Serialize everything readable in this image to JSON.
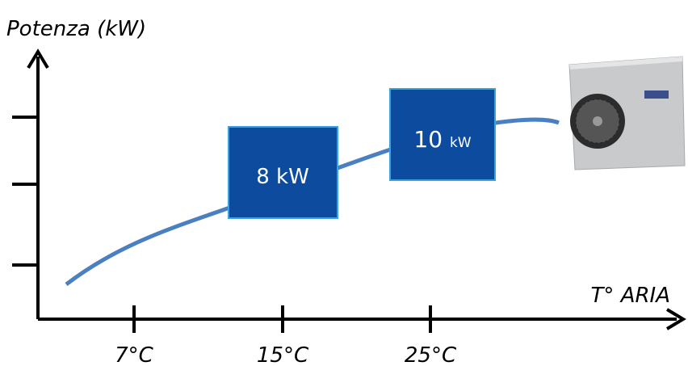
{
  "y_axis": {
    "label": "Potenza (kW)"
  },
  "x_axis": {
    "label": "T° ARIA",
    "ticks": [
      "7°C",
      "15°C",
      "25°C"
    ]
  },
  "boxes": [
    {
      "value": "8",
      "unit": "kW"
    },
    {
      "value": "10",
      "unit": "kW"
    }
  ]
}
